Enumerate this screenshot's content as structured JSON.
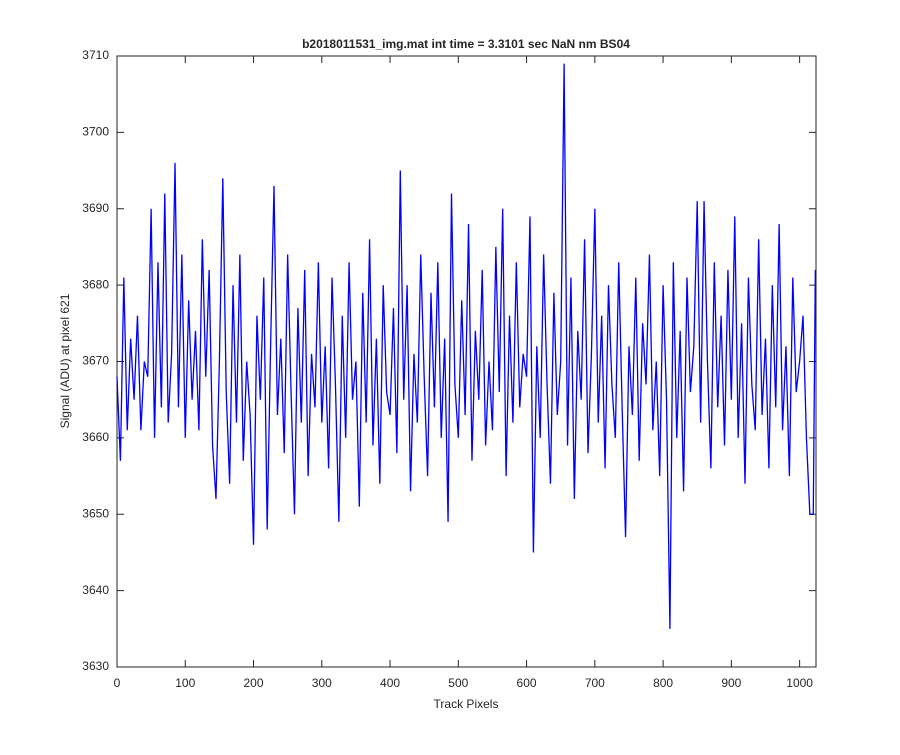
{
  "chart_data": {
    "type": "line",
    "title": "b2018011531_img.mat int time = 3.3101 sec  NaN nm BS04",
    "x_label": "Track Pixels",
    "y_label": "Signal (ADU) at pixel 621",
    "xlim": [
      0,
      1024
    ],
    "ylim": [
      3630,
      3710
    ],
    "xticks": [
      0,
      100,
      200,
      300,
      400,
      500,
      600,
      700,
      800,
      900,
      1000
    ],
    "yticks": [
      3630,
      3640,
      3650,
      3660,
      3670,
      3680,
      3690,
      3700,
      3710
    ],
    "grid": false,
    "series": [
      {
        "color": "#0000ff",
        "x": [
          0,
          5,
          10,
          15,
          20,
          25,
          30,
          35,
          40,
          45,
          50,
          55,
          60,
          65,
          70,
          75,
          80,
          85,
          90,
          95,
          100,
          105,
          110,
          115,
          120,
          125,
          130,
          135,
          140,
          145,
          150,
          155,
          160,
          165,
          170,
          175,
          180,
          185,
          190,
          195,
          200,
          205,
          210,
          215,
          220,
          225,
          230,
          235,
          240,
          245,
          250,
          255,
          260,
          265,
          270,
          275,
          280,
          285,
          290,
          295,
          300,
          305,
          310,
          315,
          320,
          325,
          330,
          335,
          340,
          345,
          350,
          355,
          360,
          365,
          370,
          375,
          380,
          385,
          390,
          395,
          400,
          405,
          410,
          415,
          420,
          425,
          430,
          435,
          440,
          445,
          450,
          455,
          460,
          465,
          470,
          475,
          480,
          485,
          490,
          495,
          500,
          505,
          510,
          515,
          520,
          525,
          530,
          535,
          540,
          545,
          550,
          555,
          560,
          565,
          570,
          575,
          580,
          585,
          590,
          595,
          600,
          605,
          610,
          615,
          620,
          625,
          630,
          635,
          640,
          645,
          650,
          655,
          660,
          665,
          670,
          675,
          680,
          685,
          690,
          695,
          700,
          705,
          710,
          715,
          720,
          725,
          730,
          735,
          740,
          745,
          750,
          755,
          760,
          765,
          770,
          775,
          780,
          785,
          790,
          795,
          800,
          805,
          810,
          815,
          820,
          825,
          830,
          835,
          840,
          845,
          850,
          855,
          860,
          865,
          870,
          875,
          880,
          885,
          890,
          895,
          900,
          905,
          910,
          915,
          920,
          925,
          930,
          935,
          940,
          945,
          950,
          955,
          960,
          965,
          970,
          975,
          980,
          985,
          990,
          995,
          1000,
          1005,
          1010,
          1015,
          1020,
          1023
        ],
        "values": [
          3668,
          3657,
          3681,
          3661,
          3673,
          3665,
          3676,
          3661,
          3670,
          3668,
          3690,
          3660,
          3683,
          3664,
          3692,
          3662,
          3671,
          3696,
          3664,
          3684,
          3660,
          3678,
          3665,
          3674,
          3661,
          3686,
          3668,
          3682,
          3659,
          3652,
          3670,
          3694,
          3666,
          3654,
          3680,
          3662,
          3684,
          3657,
          3670,
          3663,
          3646,
          3676,
          3665,
          3681,
          3648,
          3672,
          3693,
          3663,
          3673,
          3658,
          3684,
          3666,
          3650,
          3677,
          3662,
          3682,
          3655,
          3671,
          3664,
          3683,
          3662,
          3672,
          3656,
          3681,
          3667,
          3649,
          3676,
          3660,
          3683,
          3665,
          3670,
          3651,
          3679,
          3662,
          3686,
          3659,
          3673,
          3654,
          3680,
          3666,
          3663,
          3677,
          3658,
          3695,
          3665,
          3680,
          3653,
          3671,
          3662,
          3684,
          3668,
          3655,
          3679,
          3664,
          3683,
          3660,
          3673,
          3649,
          3692,
          3667,
          3660,
          3678,
          3663,
          3688,
          3657,
          3674,
          3665,
          3682,
          3659,
          3670,
          3661,
          3685,
          3666,
          3690,
          3655,
          3676,
          3662,
          3683,
          3664,
          3671,
          3668,
          3689,
          3645,
          3672,
          3660,
          3684,
          3667,
          3654,
          3679,
          3663,
          3670,
          3709,
          3659,
          3681,
          3652,
          3674,
          3665,
          3686,
          3658,
          3671,
          3690,
          3662,
          3676,
          3656,
          3680,
          3667,
          3660,
          3683,
          3664,
          3647,
          3672,
          3663,
          3681,
          3657,
          3675,
          3667,
          3684,
          3661,
          3670,
          3655,
          3680,
          3665,
          3635,
          3683,
          3660,
          3674,
          3653,
          3681,
          3666,
          3672,
          3691,
          3662,
          3691,
          3670,
          3656,
          3683,
          3664,
          3676,
          3659,
          3682,
          3665,
          3689,
          3660,
          3675,
          3654,
          3681,
          3667,
          3661,
          3686,
          3663,
          3673,
          3656,
          3680,
          3664,
          3688,
          3661,
          3672,
          3655,
          3681,
          3666,
          3670,
          3676,
          3660,
          3650,
          3650,
          3682
        ]
      }
    ]
  }
}
